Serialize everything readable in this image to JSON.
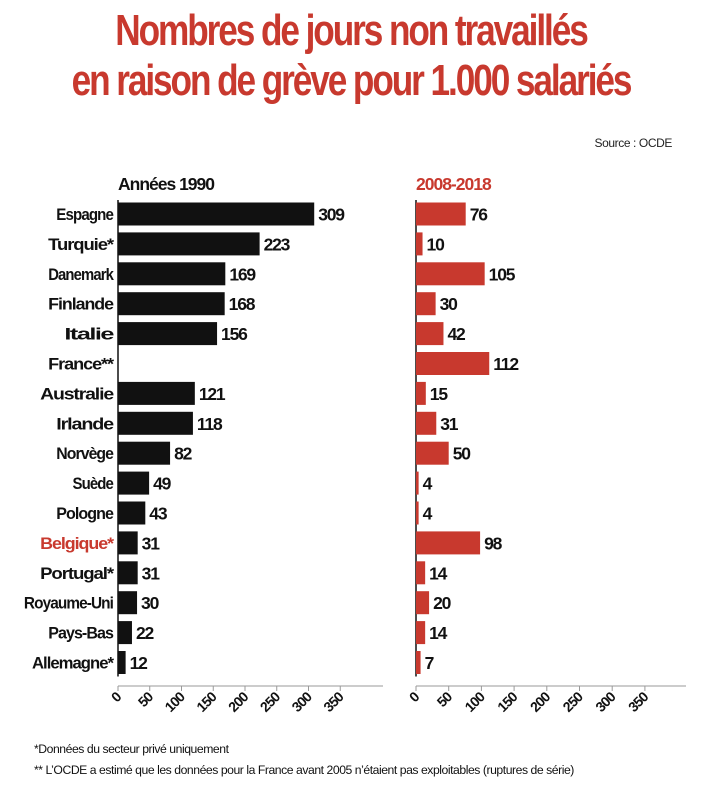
{
  "title_line1": "Nombres de jours non travaillés",
  "title_line2": "en raison de grève pour 1.000 salariés",
  "source": "Source : OCDE",
  "footnote1": "*Données du secteur privé uniquement",
  "footnote2": "** L’OCDE a estimé que les données pour la France avant 2005 n’étaient pas exploitables (ruptures de série)",
  "colors": {
    "left_bars": "#111111",
    "right_bars": "#c8392e",
    "highlight_label": "#c8392e",
    "axis": "#999999"
  },
  "chart_data": {
    "type": "bar",
    "orientation": "horizontal",
    "categories": [
      "Espagne",
      "Turquie*",
      "Danemark",
      "Finlande",
      "Italie",
      "France**",
      "Australie",
      "Irlande",
      "Norvège",
      "Suède",
      "Pologne",
      "Belgique*",
      "Portugal*",
      "Royaume-Uni",
      "Pays-Bas",
      "Allemagne*"
    ],
    "highlight_category": "Belgique*",
    "xlim": [
      0,
      350
    ],
    "xticks": [
      "0",
      "50",
      "100",
      "150",
      "200",
      "250",
      "300",
      "350"
    ],
    "series": [
      {
        "name": "Années 1990",
        "values": [
          309,
          223,
          169,
          168,
          156,
          null,
          121,
          118,
          82,
          49,
          43,
          31,
          31,
          30,
          22,
          12
        ]
      },
      {
        "name": "2008-2018",
        "values": [
          76,
          10,
          105,
          30,
          42,
          112,
          15,
          31,
          50,
          4,
          4,
          98,
          14,
          20,
          14,
          7
        ]
      }
    ]
  }
}
